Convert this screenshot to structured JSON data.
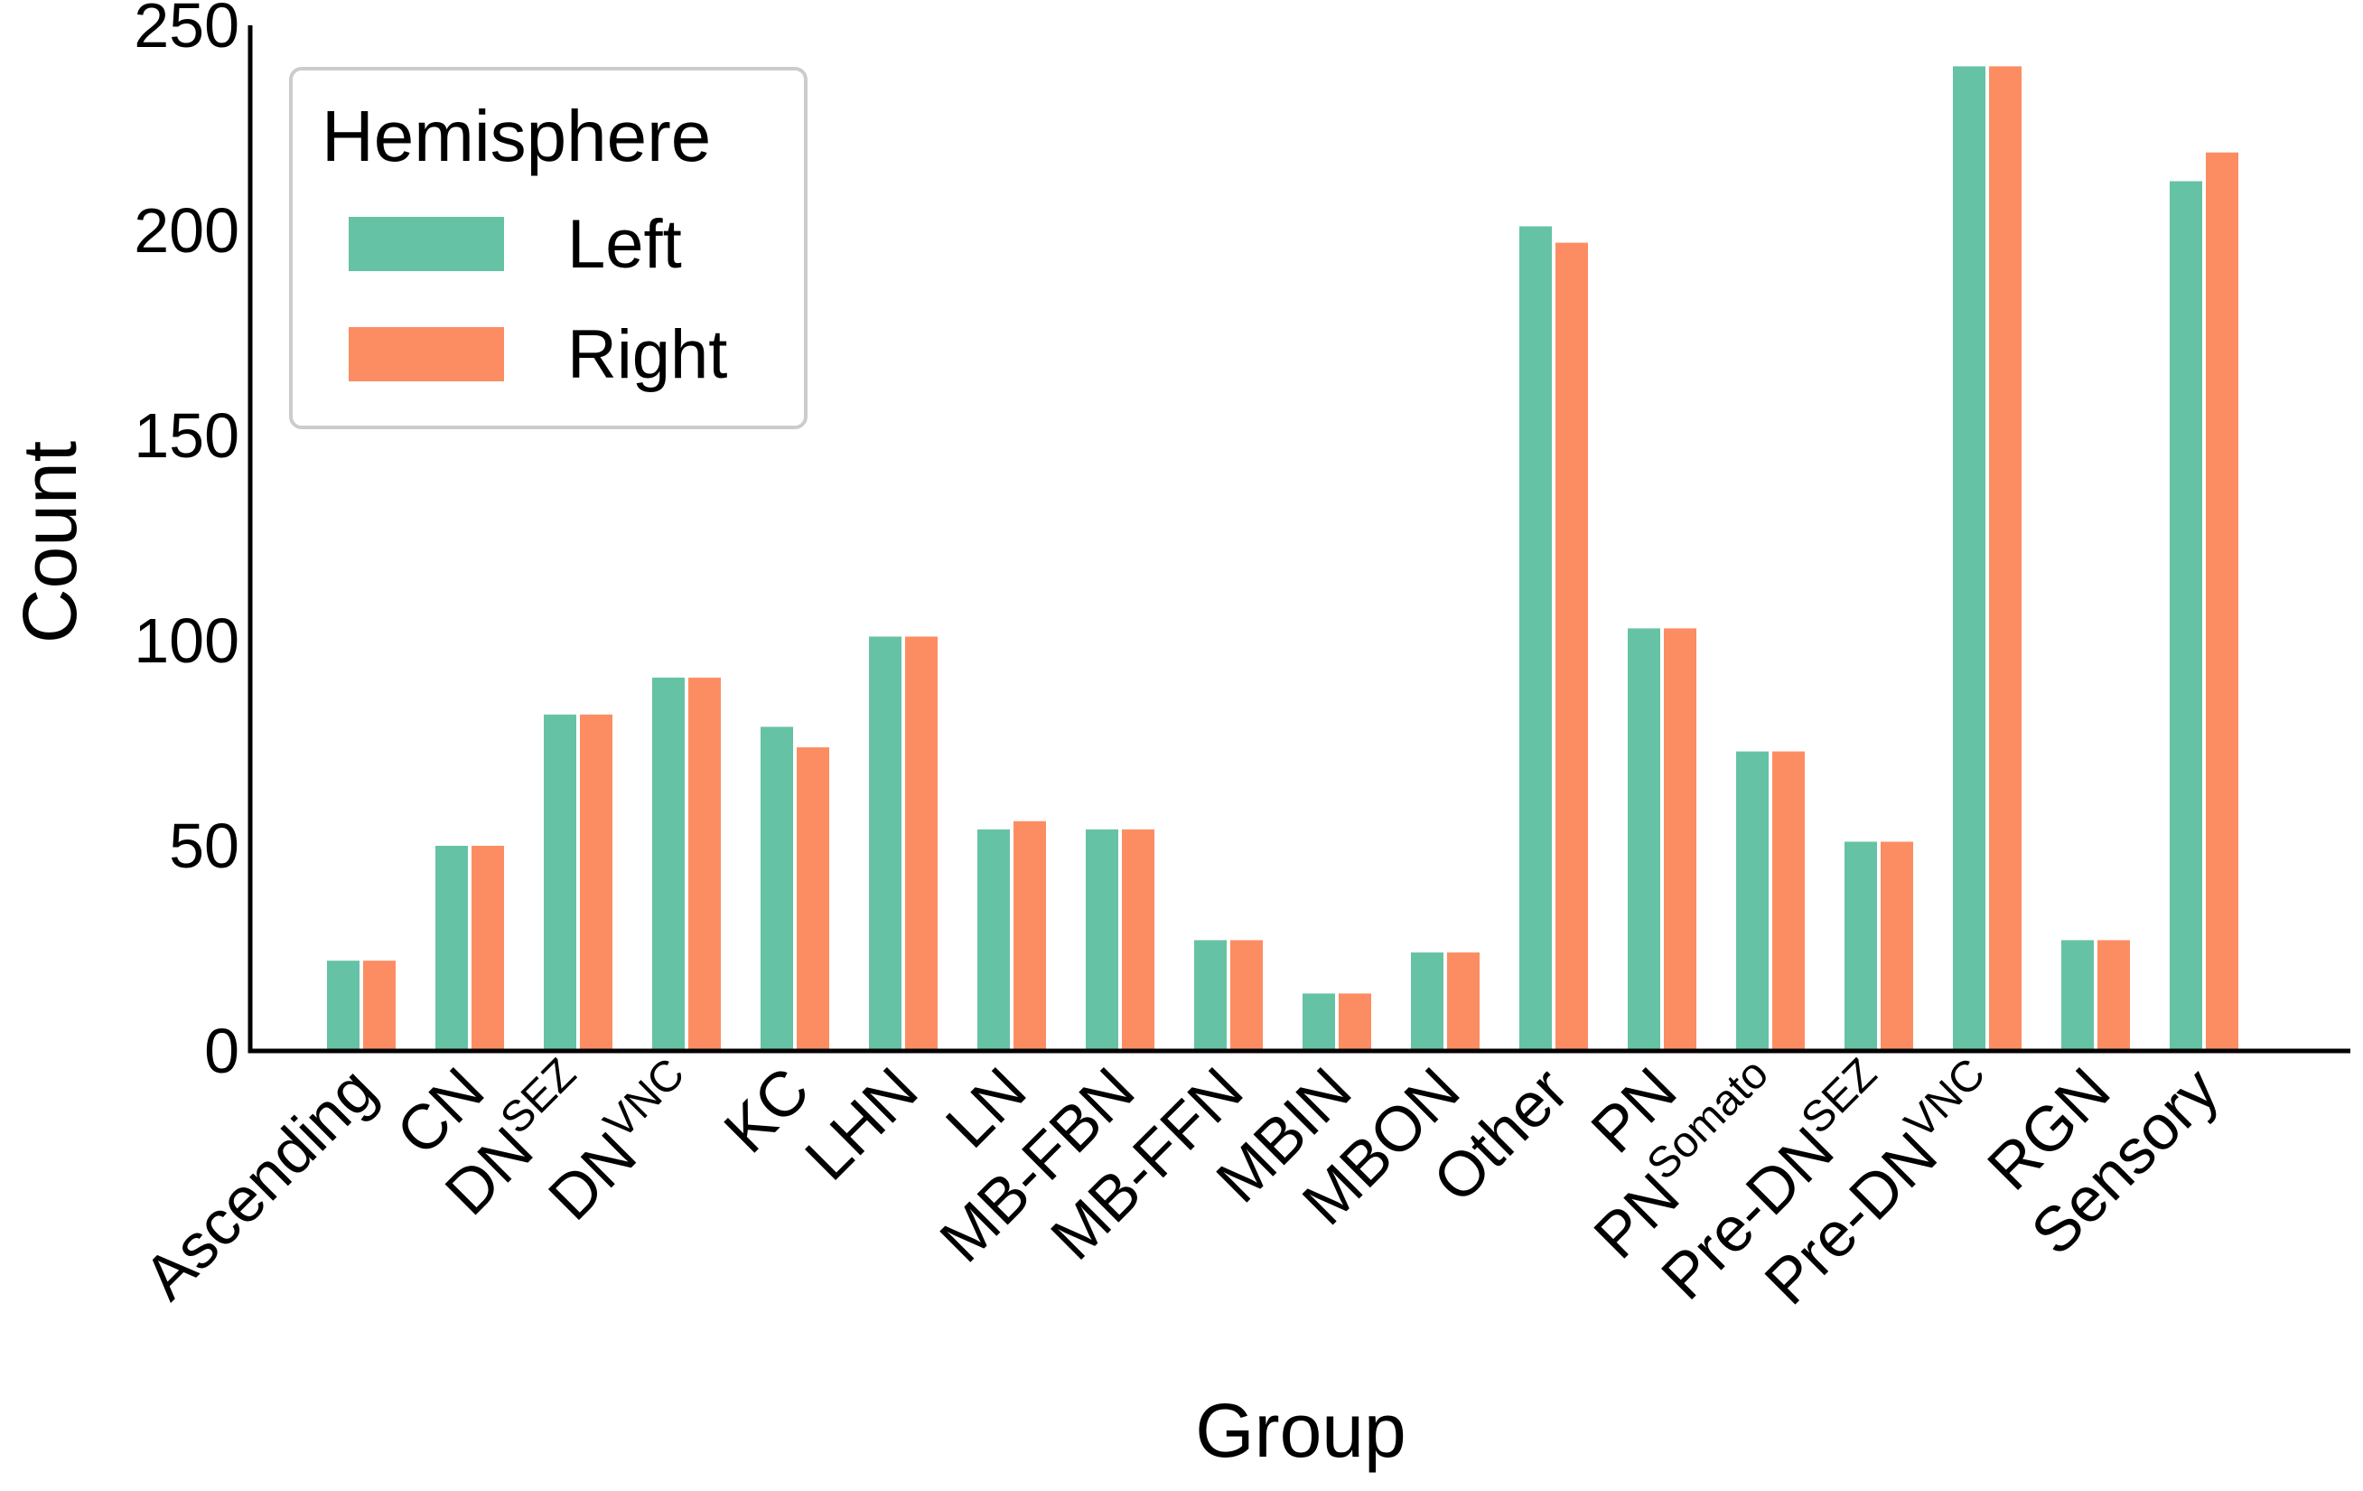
{
  "chart_data": {
    "type": "bar",
    "xlabel": "Group",
    "ylabel": "Count",
    "ylim": [
      0,
      250
    ],
    "yticks": [
      0,
      50,
      100,
      150,
      200,
      250
    ],
    "grid": false,
    "legend": {
      "title": "Hemisphere",
      "placement": "top-left"
    },
    "categories": [
      {
        "base": "Ascending",
        "sup": ""
      },
      {
        "base": "CN",
        "sup": ""
      },
      {
        "base": "DN",
        "sup": "SEZ"
      },
      {
        "base": "DN",
        "sup": "VNC"
      },
      {
        "base": "KC",
        "sup": ""
      },
      {
        "base": "LHN",
        "sup": ""
      },
      {
        "base": "LN",
        "sup": ""
      },
      {
        "base": "MB-FBN",
        "sup": ""
      },
      {
        "base": "MB-FFN",
        "sup": ""
      },
      {
        "base": "MBIN",
        "sup": ""
      },
      {
        "base": "MBON",
        "sup": ""
      },
      {
        "base": "Other",
        "sup": ""
      },
      {
        "base": "PN",
        "sup": ""
      },
      {
        "base": "PN",
        "sup": "Somato"
      },
      {
        "base": "Pre-DN",
        "sup": "SEZ"
      },
      {
        "base": "Pre-DN",
        "sup": "VNC"
      },
      {
        "base": "RGN",
        "sup": ""
      },
      {
        "base": "Sensory",
        "sup": ""
      }
    ],
    "series": [
      {
        "name": "Left",
        "color": "#66c2a5",
        "values": [
          22,
          50,
          82,
          91,
          79,
          101,
          54,
          54,
          27,
          14,
          24,
          201,
          103,
          73,
          51,
          240,
          27,
          212
        ]
      },
      {
        "name": "Right",
        "color": "#fc8d62",
        "values": [
          22,
          50,
          82,
          91,
          74,
          101,
          56,
          54,
          27,
          14,
          24,
          197,
          103,
          73,
          51,
          240,
          27,
          219
        ]
      }
    ]
  }
}
